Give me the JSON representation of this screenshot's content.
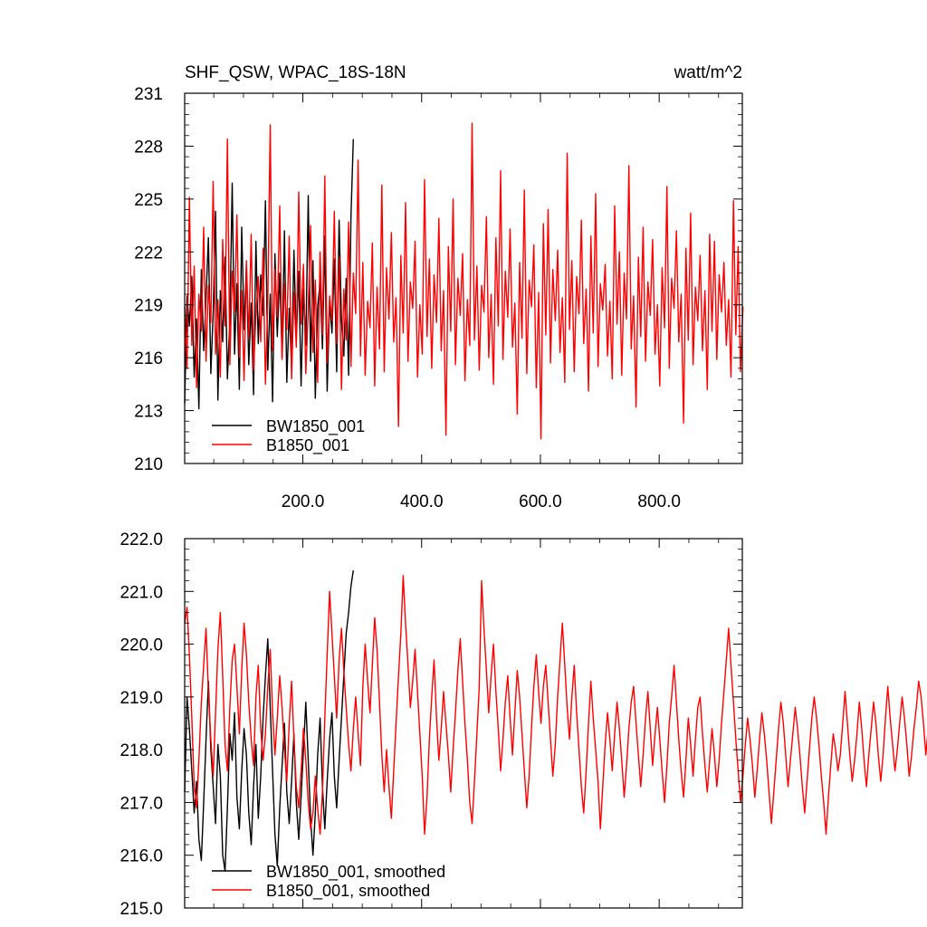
{
  "chart_data": [
    {
      "type": "line",
      "title": "SHF_QSW, WPAC_18S-18N",
      "units": "watt/m^2",
      "xlim": [
        1,
        940
      ],
      "ylim": [
        210,
        231
      ],
      "x_ticks": [
        200,
        400,
        600,
        800
      ],
      "x_tick_labels": [
        "200.0",
        "400.0",
        "600.0",
        "800.0"
      ],
      "y_ticks": [
        210,
        213,
        216,
        219,
        222,
        225,
        228,
        231
      ],
      "y_tick_labels": [
        "210",
        "213",
        "216",
        "219",
        "222",
        "225",
        "228",
        "231"
      ],
      "legend_position": "bottom-left",
      "grid": false,
      "series": [
        {
          "name": "BW1850_001",
          "color": "#000000",
          "x_start": 1,
          "x_step": 4,
          "values": [
            213.4,
            219.5,
            217.8,
            220.6,
            214.9,
            218.2,
            213.1,
            221.0,
            216.4,
            219.4,
            222.8,
            215.1,
            218.6,
            224.3,
            213.6,
            219.8,
            216.9,
            221.7,
            214.8,
            218.0,
            225.9,
            216.2,
            220.2,
            214.2,
            223.4,
            217.6,
            221.3,
            215.6,
            219.1,
            213.9,
            222.6,
            216.8,
            220.7,
            218.4,
            224.9,
            215.3,
            219.6,
            213.5,
            221.9,
            217.2,
            220.8,
            216.0,
            223.2,
            214.6,
            218.8,
            215.4,
            222.1,
            217.0,
            220.9,
            214.4,
            219.9,
            216.7,
            225.2,
            215.8,
            221.5,
            213.7,
            218.9,
            220.3,
            216.5,
            222.9,
            214.1,
            219.2,
            217.4,
            221.6,
            215.2,
            223.8,
            218.1,
            216.1,
            220.5,
            215.0,
            224.0,
            228.4
          ]
        },
        {
          "name": "B1850_001",
          "color": "#ff0000",
          "x_start": 1,
          "x_step": 4,
          "values": [
            218.9,
            215.4,
            225.1,
            216.7,
            221.2,
            214.3,
            219.6,
            217.5,
            223.4,
            215.8,
            220.1,
            218.0,
            226.0,
            216.2,
            219.3,
            214.9,
            222.7,
            217.8,
            228.4,
            215.6,
            220.9,
            218.6,
            224.1,
            216.0,
            219.8,
            214.7,
            221.5,
            217.1,
            223.0,
            215.3,
            218.4,
            220.6,
            216.9,
            222.2,
            214.5,
            219.1,
            229.2,
            216.4,
            221.0,
            218.3,
            224.6,
            215.9,
            220.2,
            217.6,
            222.9,
            214.8,
            219.7,
            216.6,
            225.4,
            217.9,
            221.3,
            215.1,
            218.7,
            223.5,
            216.3,
            220.4,
            214.6,
            222.0,
            217.3,
            226.3,
            215.7,
            219.5,
            218.1,
            224.3,
            216.8,
            221.7,
            214.2,
            219.9,
            217.0,
            223.7,
            215.5,
            220.8,
            218.5,
            227.2,
            216.1,
            221.4,
            215.0,
            219.2,
            217.7,
            222.5,
            214.4,
            220.0,
            216.5,
            225.8,
            215.2,
            221.1,
            218.2,
            223.1,
            216.9,
            219.4,
            212.1,
            221.8,
            217.4,
            224.8,
            215.8,
            220.3,
            218.8,
            222.6,
            214.9,
            219.0,
            216.2,
            226.1,
            217.2,
            221.6,
            215.4,
            220.7,
            218.0,
            223.9,
            216.4,
            219.8,
            211.6,
            222.3,
            217.5,
            225.0,
            215.6,
            220.5,
            218.4,
            221.9,
            214.7,
            219.3,
            216.7,
            229.3,
            217.0,
            221.2,
            215.3,
            220.1,
            218.6,
            224.0,
            216.0,
            219.6,
            214.5,
            222.8,
            217.8,
            226.6,
            215.9,
            220.9,
            218.3,
            223.3,
            216.6,
            219.1,
            212.8,
            221.4,
            217.1,
            225.5,
            215.1,
            220.4,
            218.9,
            222.4,
            214.3,
            219.7,
            211.4,
            223.6,
            217.3,
            224.4,
            215.7,
            221.0,
            218.1,
            222.1,
            216.3,
            219.4,
            214.6,
            227.6,
            217.6,
            221.5,
            215.2,
            220.6,
            218.5,
            223.8,
            216.8,
            219.9,
            214.1,
            222.9,
            217.4,
            225.3,
            215.5,
            220.2,
            218.7,
            221.3,
            216.1,
            219.2,
            214.8,
            224.6,
            217.9,
            222.0,
            215.0,
            220.8,
            218.2,
            226.9,
            216.5,
            219.5,
            213.2,
            221.7,
            217.2,
            223.4,
            215.8,
            220.3,
            218.4,
            222.7,
            216.2,
            219.0,
            214.4,
            221.1,
            217.7,
            225.7,
            215.4,
            220.5,
            218.8,
            223.2,
            216.9,
            219.6,
            212.3,
            222.2,
            217.0,
            224.2,
            215.6,
            220.0,
            218.1,
            221.8,
            216.4,
            219.8,
            214.2,
            223.0,
            217.5,
            222.6,
            215.9,
            220.7,
            218.6,
            221.4,
            216.7,
            219.3,
            214.9,
            224.9,
            217.3,
            222.3,
            215.2,
            218.9
          ]
        }
      ]
    },
    {
      "type": "line",
      "xlim": [
        1,
        940
      ],
      "ylim": [
        215.0,
        222.0
      ],
      "y_ticks": [
        215,
        216,
        217,
        218,
        219,
        220,
        221,
        222
      ],
      "y_tick_labels": [
        "215.0",
        "216.0",
        "217.0",
        "218.0",
        "219.0",
        "220.0",
        "221.0",
        "222.0"
      ],
      "x_ticks": [
        200,
        400,
        600,
        800
      ],
      "legend_position": "bottom-left",
      "grid": false,
      "series": [
        {
          "name": "BW1850_001, smoothed",
          "color": "#000000",
          "x_start": 1,
          "x_step": 4,
          "values": [
            217.2,
            219.0,
            218.4,
            217.6,
            216.8,
            217.4,
            216.3,
            215.9,
            217.0,
            218.2,
            219.3,
            218.0,
            217.3,
            216.6,
            218.1,
            217.5,
            216.0,
            215.7,
            216.9,
            218.3,
            217.8,
            218.7,
            217.1,
            216.5,
            217.6,
            218.4,
            217.9,
            216.8,
            216.2,
            217.3,
            218.1,
            216.7,
            217.5,
            218.6,
            219.4,
            220.1,
            218.8,
            217.6,
            216.4,
            215.8,
            216.9,
            217.7,
            218.5,
            217.2,
            216.6,
            217.4,
            218.3,
            217.0,
            216.3,
            217.1,
            218.0,
            218.9,
            217.8,
            216.7,
            216.0,
            216.8,
            217.9,
            218.6,
            217.3,
            216.5,
            217.4,
            218.2,
            218.7,
            217.5,
            216.9,
            217.8,
            218.6,
            219.4,
            220.2,
            220.6,
            221.1,
            221.4
          ]
        },
        {
          "name": "B1850_001, smoothed",
          "color": "#ff0000",
          "x_start": 1,
          "x_step": 4,
          "values": [
            220.4,
            220.7,
            219.8,
            218.6,
            217.3,
            216.9,
            217.8,
            218.9,
            219.6,
            220.3,
            219.1,
            218.2,
            217.5,
            218.7,
            219.9,
            220.6,
            219.4,
            218.1,
            217.6,
            218.8,
            219.7,
            220.0,
            219.2,
            218.3,
            219.5,
            220.4,
            219.8,
            218.9,
            218.2,
            217.7,
            219.0,
            219.6,
            218.4,
            217.8,
            218.3,
            219.2,
            219.9,
            218.7,
            217.9,
            218.6,
            219.4,
            218.8,
            218.0,
            217.4,
            218.5,
            219.3,
            218.2,
            217.3,
            216.9,
            217.6,
            218.4,
            217.8,
            217.0,
            216.5,
            216.8,
            217.5,
            216.9,
            216.4,
            217.2,
            218.6,
            219.8,
            221.0,
            220.2,
            219.4,
            218.6,
            219.7,
            220.3,
            219.5,
            218.8,
            218.1,
            217.6,
            218.4,
            219.0,
            218.3,
            217.7,
            219.2,
            220.0,
            219.3,
            218.7,
            219.6,
            220.5,
            219.9,
            218.9,
            217.9,
            217.2,
            218.0,
            217.3,
            216.7,
            217.6,
            218.5,
            219.4,
            220.2,
            221.3,
            220.4,
            219.6,
            218.8,
            219.3,
            219.9,
            219.1,
            218.3,
            217.5,
            216.4,
            217.1,
            218.2,
            219.0,
            219.7,
            218.6,
            217.8,
            218.4,
            219.1,
            218.5,
            217.9,
            217.2,
            218.0,
            218.7,
            219.5,
            220.1,
            219.3,
            218.5,
            217.8,
            217.0,
            216.6,
            217.4,
            218.3,
            219.2,
            221.2,
            220.3,
            219.5,
            218.7,
            219.4,
            220.0,
            219.1,
            218.4,
            217.6,
            218.2,
            218.9,
            219.4,
            218.6,
            217.9,
            218.7,
            219.5,
            219.0,
            218.3,
            217.6,
            216.9,
            217.5,
            218.4,
            219.2,
            219.8,
            219.1,
            218.5,
            219.2,
            219.6,
            218.9,
            218.2,
            217.5,
            218.1,
            219.0,
            219.7,
            220.4,
            219.6,
            218.8,
            218.2,
            219.0,
            219.6,
            218.7,
            218.0,
            217.3,
            216.8,
            217.6,
            218.5,
            219.3,
            218.6,
            218.0,
            217.4,
            216.5,
            217.3,
            218.1,
            218.7,
            218.2,
            217.6,
            218.3,
            218.9,
            218.4,
            217.8,
            217.1,
            217.7,
            218.4,
            218.9,
            219.2,
            218.5,
            217.9,
            217.3,
            217.9,
            218.6,
            219.1,
            218.4,
            217.7,
            218.3,
            218.8,
            218.2,
            217.6,
            217.0,
            217.7,
            218.5,
            219.0,
            219.6,
            218.9,
            218.2,
            217.6,
            217.1,
            217.8,
            218.6,
            218.1,
            217.5,
            218.2,
            218.8,
            219.0,
            218.3,
            217.7,
            217.2,
            217.8,
            218.4,
            217.9,
            217.3,
            217.8,
            218.5,
            219.1,
            219.7,
            220.3,
            219.6,
            218.9,
            218.2,
            217.6,
            217.0,
            217.5,
            218.1,
            218.6,
            218.2,
            217.7,
            217.1,
            217.6,
            218.2,
            218.7,
            218.3,
            217.8,
            217.2,
            216.6,
            217.2,
            217.8,
            218.4,
            218.9,
            218.5,
            217.9,
            217.3,
            217.8,
            218.3,
            218.8,
            218.4,
            217.9,
            217.3,
            216.8,
            217.4,
            218.0,
            218.6,
            219.0,
            218.6,
            218.1,
            217.5,
            217.0,
            216.4,
            217.1,
            217.7,
            218.3,
            218.0,
            217.6,
            217.9,
            218.5,
            219.1,
            218.5,
            217.9,
            217.4,
            217.8,
            218.3,
            218.9,
            218.4,
            217.8,
            217.3,
            217.9,
            218.4,
            218.9,
            218.5,
            217.9,
            217.4,
            217.9,
            218.6,
            219.2,
            218.6,
            218.1,
            217.6,
            218.0,
            218.5,
            219.0,
            218.6,
            218.1,
            217.5,
            217.9,
            218.4,
            218.8,
            219.3,
            219.0,
            218.5,
            217.9,
            218.4,
            218.8
          ]
        }
      ]
    }
  ]
}
